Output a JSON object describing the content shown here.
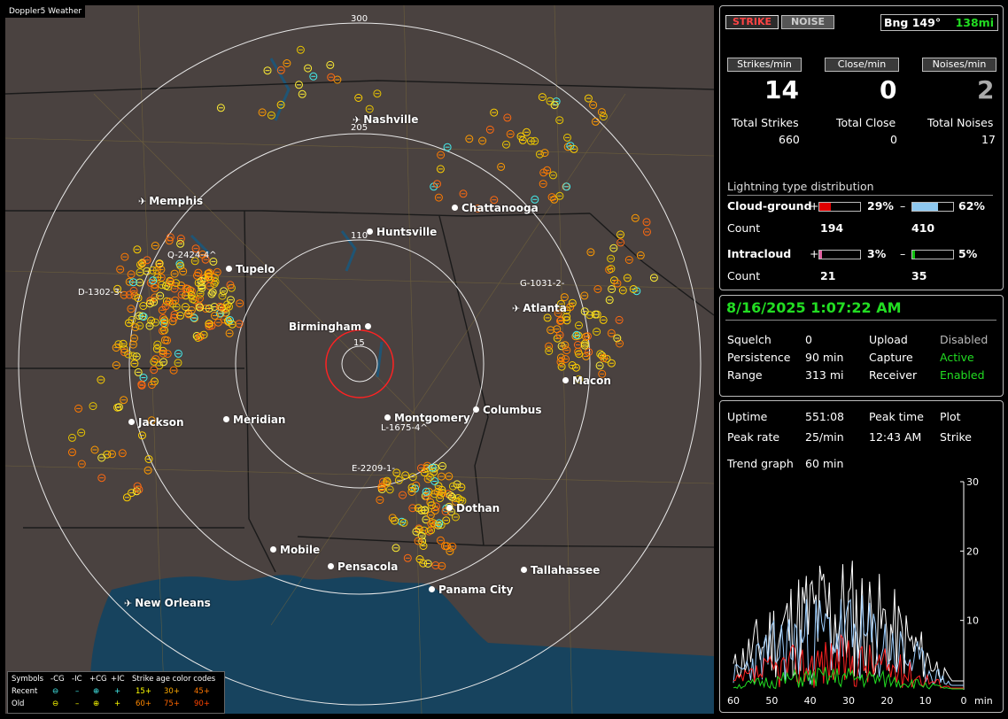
{
  "app_title": "Doppler5 Weather",
  "map": {
    "ring_labels": [
      "300",
      "205",
      "110",
      "15"
    ],
    "cities": [
      {
        "name": "Nashville",
        "type": "airport"
      },
      {
        "name": "Memphis",
        "type": "airport"
      },
      {
        "name": "Chattanooga",
        "type": "city"
      },
      {
        "name": "Huntsville",
        "type": "city"
      },
      {
        "name": "Tupelo",
        "type": "city"
      },
      {
        "name": "Birmingham",
        "type": "city"
      },
      {
        "name": "Atlanta",
        "type": "airport"
      },
      {
        "name": "Macon",
        "type": "city"
      },
      {
        "name": "Jackson",
        "type": "city"
      },
      {
        "name": "Meridian",
        "type": "city"
      },
      {
        "name": "Montgomery",
        "type": "city"
      },
      {
        "name": "Columbus",
        "type": "city"
      },
      {
        "name": "Dothan",
        "type": "city"
      },
      {
        "name": "Mobile",
        "type": "city"
      },
      {
        "name": "Pensacola",
        "type": "city"
      },
      {
        "name": "Tallahassee",
        "type": "city"
      },
      {
        "name": "Panama City",
        "type": "city"
      },
      {
        "name": "New Orleans",
        "type": "airport"
      }
    ],
    "storm_labels": [
      "Q-2424-4^",
      "D-1302-3-",
      "G-1031-2-",
      "L-1675-4^",
      "E-2209-1-"
    ]
  },
  "legend": {
    "header": [
      "Symbols",
      "-CG",
      "-IC",
      "+CG",
      "+IC",
      "Strike age color codes"
    ],
    "recent": {
      "label": "Recent",
      "ages": [
        "15+",
        "30+",
        "45+"
      ]
    },
    "old": {
      "label": "Old",
      "ages": [
        "60+",
        "75+",
        "90+"
      ]
    }
  },
  "stats": {
    "strike_button": "STRIKE",
    "noise_button": "NOISE",
    "bearing": "Bng 149°",
    "distance": "138mi",
    "strikes_min_label": "Strikes/min",
    "close_min_label": "Close/min",
    "noises_min_label": "Noises/min",
    "strikes_min": "14",
    "close_min": "0",
    "noises_min": "2",
    "total_strikes_label": "Total Strikes",
    "total_close_label": "Total Close",
    "total_noises_label": "Total Noises",
    "total_strikes": "660",
    "total_close": "0",
    "total_noises": "17",
    "dist_title": "Lightning type distribution",
    "cloud_ground_label": "Cloud-ground",
    "intracloud_label": "Intracloud",
    "count_label": "Count",
    "cg_pos_pct": "29%",
    "cg_neg_pct": "62%",
    "cg_pos_count": "194",
    "cg_neg_count": "410",
    "ic_pos_pct": "3%",
    "ic_neg_pct": "5%",
    "ic_pos_count": "21",
    "ic_neg_count": "35",
    "cg_pos_level": 0.29,
    "cg_neg_level": 0.62,
    "ic_pos_level": 0.03,
    "ic_neg_level": 0.05,
    "plus": "+",
    "minus": "–"
  },
  "settings": {
    "datetime": "8/16/2025 1:07:22 AM",
    "squelch_label": "Squelch",
    "squelch": "0",
    "persistence_label": "Persistence",
    "persistence": "90 min",
    "range_label": "Range",
    "range": "313 mi",
    "upload_label": "Upload",
    "upload": "Disabled",
    "capture_label": "Capture",
    "capture": "Active",
    "receiver_label": "Receiver",
    "receiver": "Enabled"
  },
  "trend": {
    "uptime_label": "Uptime",
    "uptime": "551:08",
    "peak_time_label": "Peak time",
    "peak_time": "12:43 AM",
    "plot_label": "Plot",
    "plot": "Strike",
    "peak_rate_label": "Peak rate",
    "peak_rate": "25/min",
    "trend_graph_label": "Trend graph",
    "trend_graph": "60 min",
    "y_ticks": [
      "30",
      "20",
      "10"
    ],
    "x_ticks": [
      "60",
      "50",
      "40",
      "30",
      "20",
      "10",
      "0"
    ],
    "x_unit": "min"
  },
  "colors": {
    "accent_green": "#22dd22",
    "strike_red": "#ff3333",
    "map_land": "#4a4240",
    "map_water": "#17435e",
    "cg_pos": "#e00000",
    "cg_neg": "#8ec8ef",
    "ic_pos": "#e060a0",
    "ic_neg": "#10c010"
  }
}
